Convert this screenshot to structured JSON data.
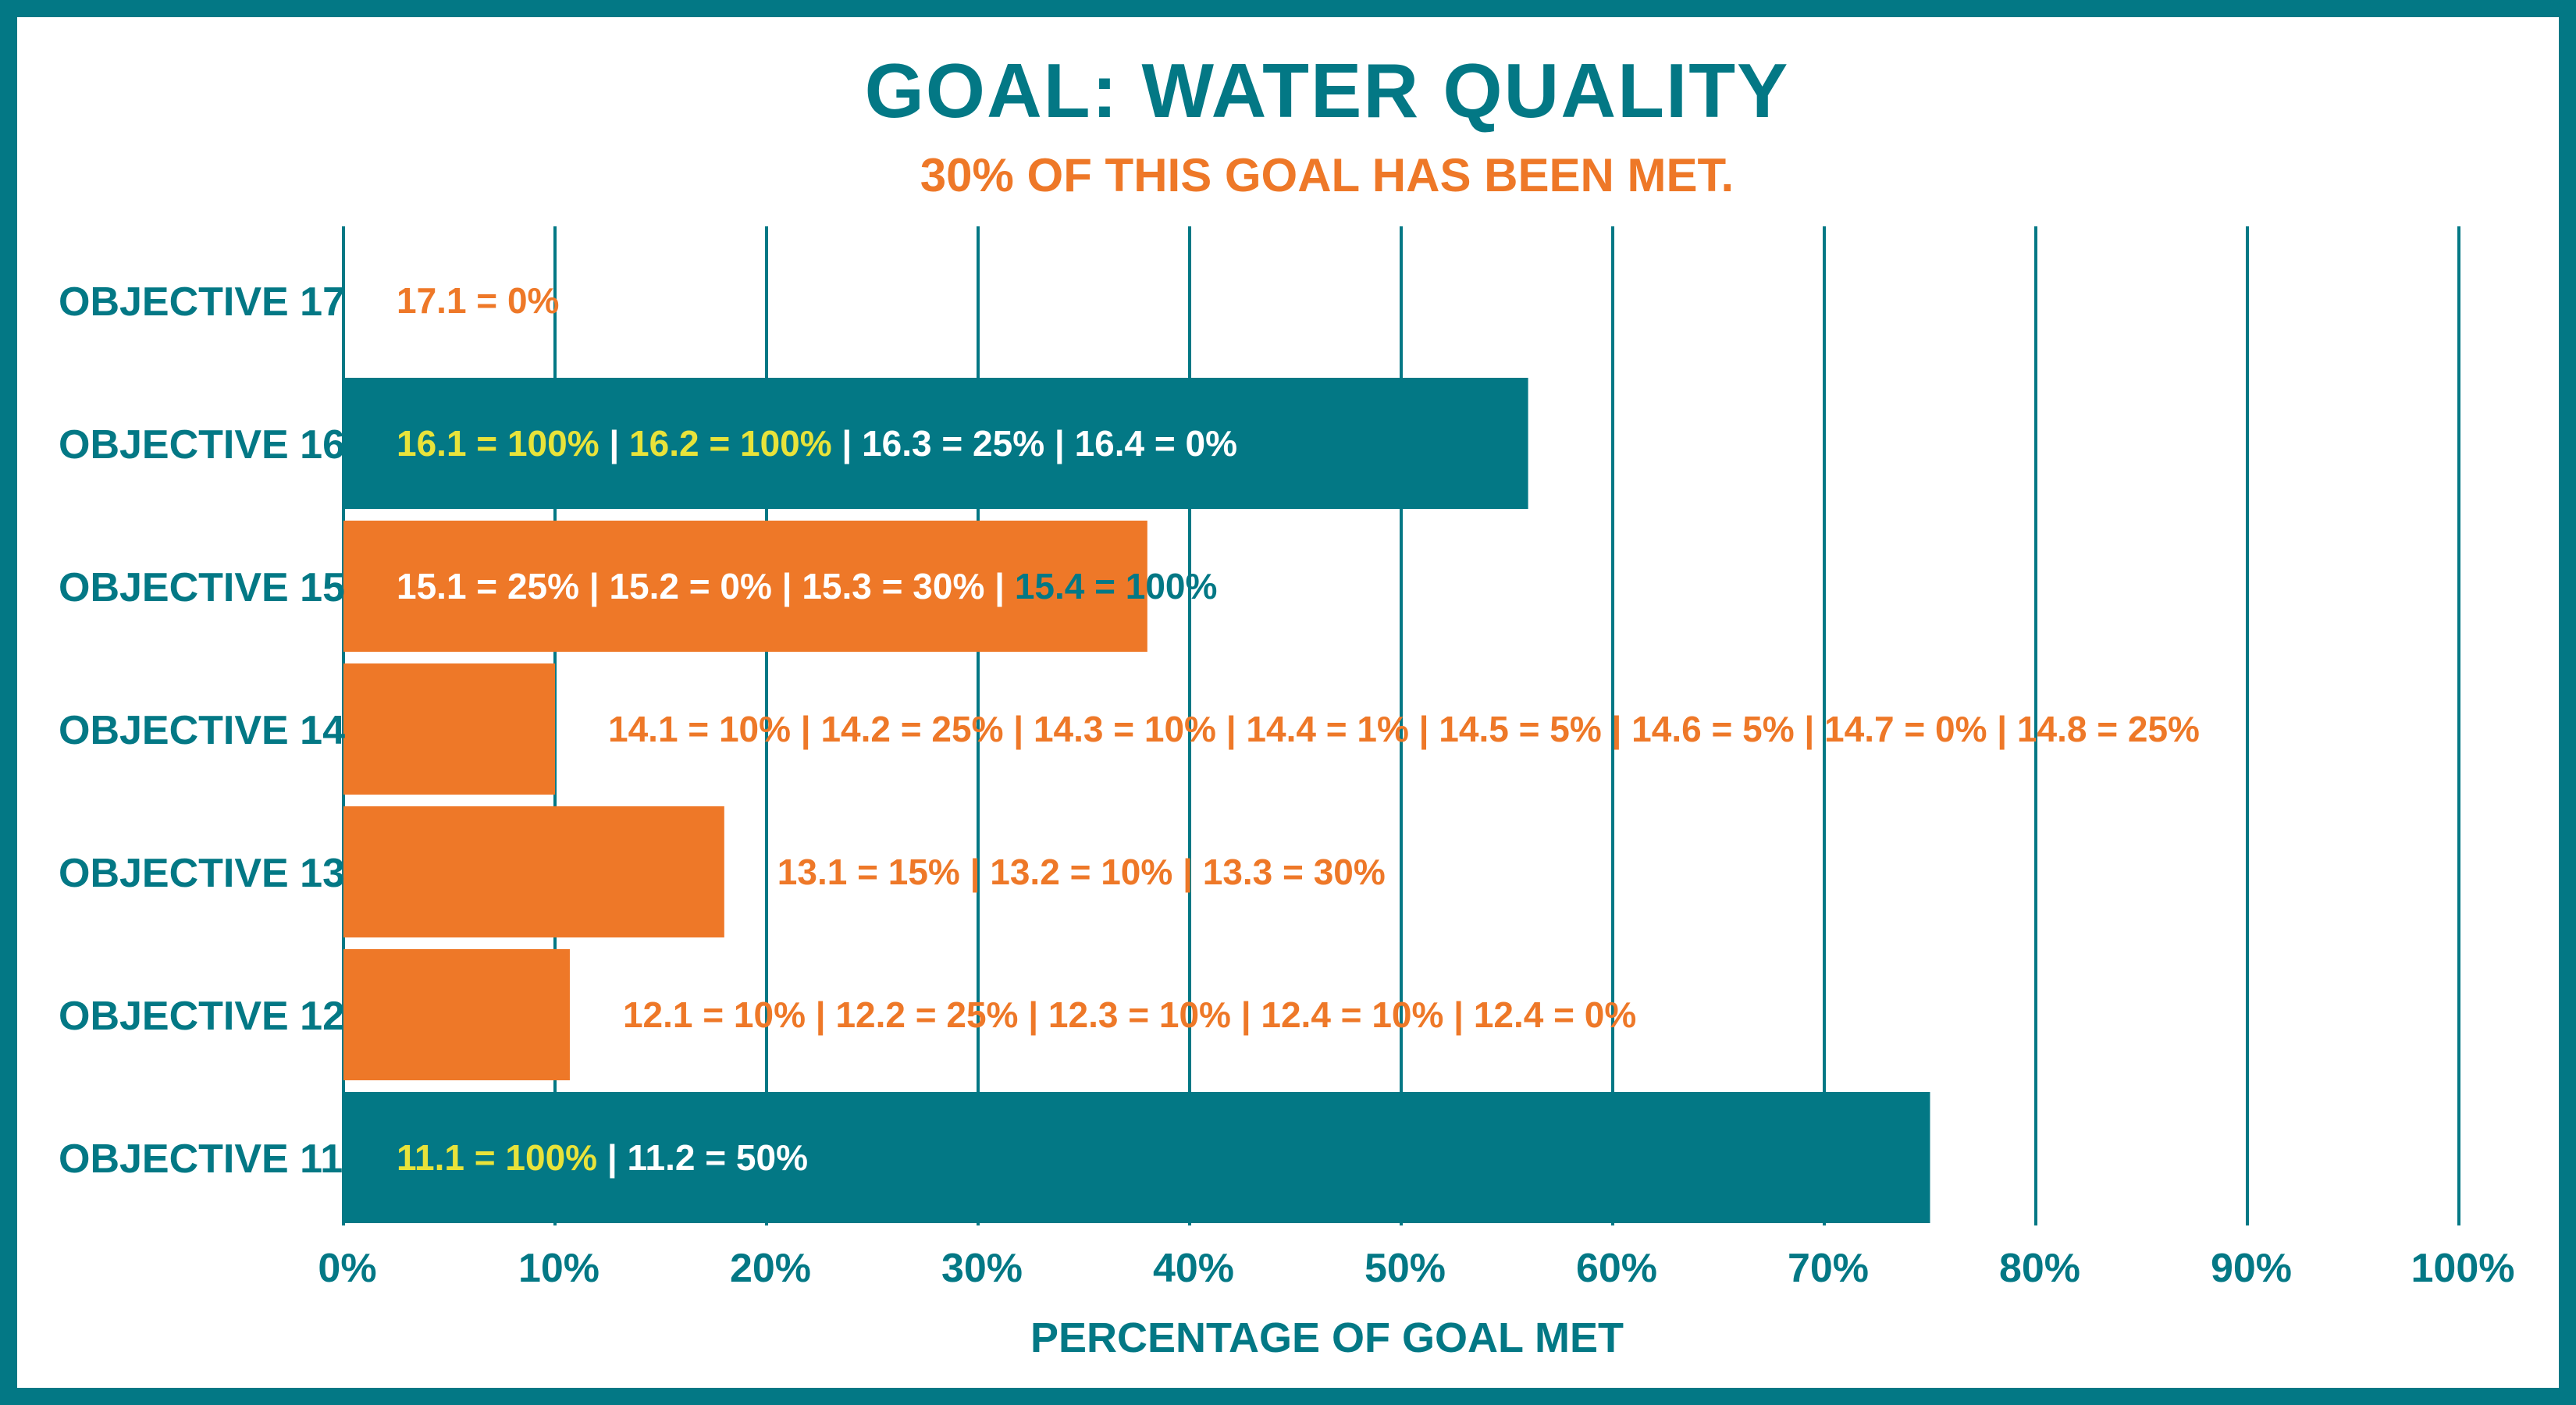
{
  "colors": {
    "teal": "#037885",
    "orange": "#EE7828",
    "yellow": "#E8E33A",
    "white": "#FFFFFF",
    "background": "#FFFFFF"
  },
  "chart_data": {
    "type": "bar",
    "orientation": "horizontal",
    "title": "GOAL: WATER QUALITY",
    "subtitle": "30% OF THIS GOAL HAS BEEN MET.",
    "xlabel": "PERCENTAGE OF GOAL MET",
    "ylabel": "",
    "xlim": [
      0,
      100
    ],
    "x_ticks": [
      0,
      10,
      20,
      30,
      40,
      50,
      60,
      70,
      80,
      90,
      100
    ],
    "x_tick_labels": [
      "0%",
      "10%",
      "20%",
      "30%",
      "40%",
      "50%",
      "60%",
      "70%",
      "80%",
      "90%",
      "100%"
    ],
    "grid": "vertical",
    "categories": [
      "OBJECTIVE 17",
      "OBJECTIVE 16",
      "OBJECTIVE 15",
      "OBJECTIVE 14",
      "OBJECTIVE 13",
      "OBJECTIVE 12",
      "OBJECTIVE 11"
    ],
    "values": [
      0,
      56,
      38,
      10,
      18,
      10.7,
      75
    ],
    "bar_colors": [
      "orange",
      "teal",
      "orange",
      "orange",
      "orange",
      "orange",
      "teal"
    ],
    "annotations": [
      {
        "label_inside": false,
        "segments": [
          {
            "text": "17.1 = 0%",
            "color": "orange"
          }
        ]
      },
      {
        "label_inside": true,
        "segments": [
          {
            "text": "16.1 = 100%",
            "color": "yellow"
          },
          {
            "text": "16.2 = 100%",
            "color": "yellow"
          },
          {
            "text": "16.3 = 25%",
            "color": "white"
          },
          {
            "text": "16.4 = 0%",
            "color": "white"
          }
        ]
      },
      {
        "label_inside": true,
        "segments": [
          {
            "text": "15.1 = 25%",
            "color": "white"
          },
          {
            "text": "15.2 = 0%",
            "color": "white"
          },
          {
            "text": "15.3 = 30%",
            "color": "white"
          },
          {
            "text": "15.4 = 100%",
            "color": "teal"
          }
        ]
      },
      {
        "label_inside": false,
        "segments": [
          {
            "text": "14.1 = 10%",
            "color": "orange"
          },
          {
            "text": "14.2 = 25%",
            "color": "orange"
          },
          {
            "text": "14.3 = 10%",
            "color": "orange"
          },
          {
            "text": "14.4 = 1%",
            "color": "orange"
          },
          {
            "text": "14.5 = 5%",
            "color": "orange"
          },
          {
            "text": "14.6 = 5%",
            "color": "orange"
          },
          {
            "text": "14.7 = 0%",
            "color": "orange"
          },
          {
            "text": "14.8 = 25%",
            "color": "orange"
          }
        ]
      },
      {
        "label_inside": false,
        "segments": [
          {
            "text": "13.1 = 15%",
            "color": "orange"
          },
          {
            "text": "13.2 = 10%",
            "color": "orange"
          },
          {
            "text": "13.3 = 30%",
            "color": "orange"
          }
        ]
      },
      {
        "label_inside": false,
        "segments": [
          {
            "text": "12.1 = 10%",
            "color": "orange"
          },
          {
            "text": "12.2 = 25%",
            "color": "orange"
          },
          {
            "text": "12.3 = 10%",
            "color": "orange"
          },
          {
            "text": "12.4 = 10%",
            "color": "orange"
          },
          {
            "text": "12.4 = 0%",
            "color": "orange"
          }
        ]
      },
      {
        "label_inside": true,
        "segments": [
          {
            "text": "11.1 = 100%",
            "color": "yellow"
          },
          {
            "text": "11.2 = 50%",
            "color": "white"
          }
        ]
      }
    ],
    "separator": "|"
  }
}
